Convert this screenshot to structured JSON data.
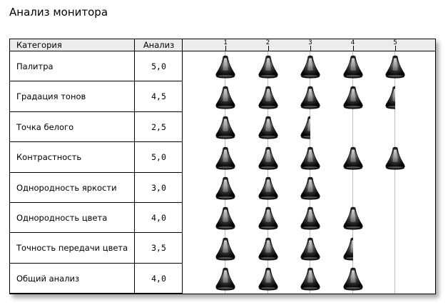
{
  "page": {
    "title": "Анализ монитора"
  },
  "table": {
    "header": {
      "category": "Категория",
      "analysis": "Анализ",
      "scale": [
        "1",
        "2",
        "3",
        "4",
        "5"
      ]
    },
    "rows": [
      {
        "category": "Палитра",
        "value": "5,0",
        "score": 5.0
      },
      {
        "category": "Градация тонов",
        "value": "4,5",
        "score": 4.5
      },
      {
        "category": "Точка белого",
        "value": "2,5",
        "score": 2.5
      },
      {
        "category": "Контрастность",
        "value": "5,0",
        "score": 5.0
      },
      {
        "category": "Однородность яркости",
        "value": "3,0",
        "score": 3.0
      },
      {
        "category": "Однородность цвета",
        "value": "4,0",
        "score": 4.0
      },
      {
        "category": "Точность передачи цвета",
        "value": "3,5",
        "score": 3.5
      },
      {
        "category": "Общий анализ",
        "value": "4,0",
        "score": 4.0
      }
    ],
    "rating_icon": "bell-rating-icon",
    "max_score": 5
  }
}
